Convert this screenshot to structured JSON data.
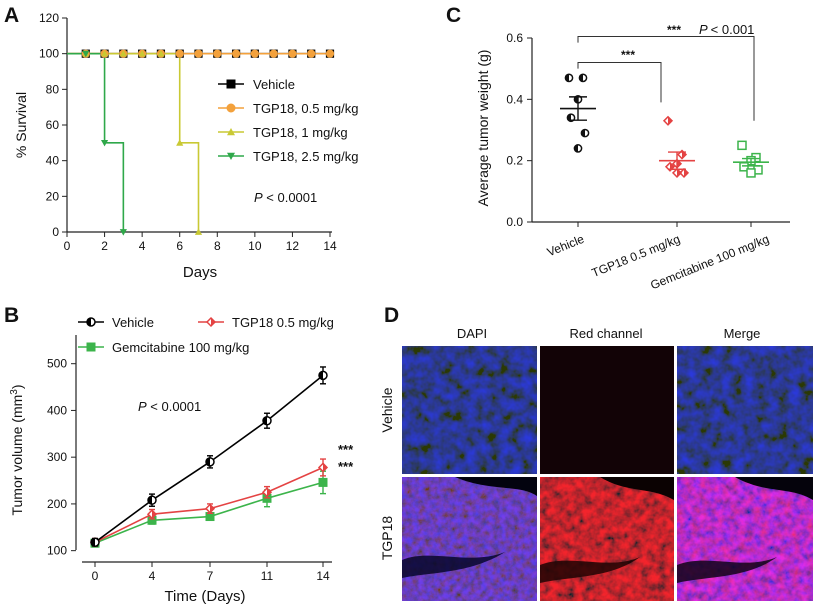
{
  "panel_labels": {
    "a": "A",
    "b": "B",
    "c": "C",
    "d": "D"
  },
  "micrograph": {
    "columns": [
      "DAPI",
      "Red channel",
      "Merge"
    ],
    "rows": [
      "Vehicle",
      "TGP18"
    ]
  },
  "chart_data": [
    {
      "id": "A",
      "type": "line",
      "xlabel": "Days",
      "ylabel": "% Survival",
      "xlim": [
        0,
        14
      ],
      "ylim": [
        0,
        120
      ],
      "xticks": [
        0,
        2,
        4,
        6,
        8,
        10,
        12,
        14
      ],
      "yticks": [
        0,
        20,
        40,
        60,
        80,
        100,
        120
      ],
      "annotation": {
        "p": "P",
        "text": " < 0.0001"
      },
      "series": [
        {
          "name": "Vehicle",
          "color": "#000000",
          "marker": "square",
          "points": [
            [
              0,
              100
            ],
            [
              14,
              100
            ]
          ],
          "marks": [
            1,
            2,
            3,
            4,
            5,
            6,
            7,
            8,
            9,
            10,
            11,
            12,
            13,
            14
          ]
        },
        {
          "name": "TGP18, 0.5 mg/kg",
          "color": "#f3a13c",
          "marker": "circle",
          "points": [
            [
              0,
              100
            ],
            [
              14,
              100
            ]
          ],
          "marks": [
            1,
            2,
            3,
            4,
            5,
            6,
            7,
            8,
            9,
            10,
            11,
            12,
            13,
            14
          ]
        },
        {
          "name": "TGP18, 1 mg/kg",
          "color": "#c9c934",
          "marker": "triangle-up",
          "points": [
            [
              0,
              100
            ],
            [
              6,
              100
            ],
            [
              6,
              50
            ],
            [
              7,
              50
            ],
            [
              7,
              0
            ]
          ],
          "mark_points": [
            [
              1,
              100
            ],
            [
              2,
              100
            ],
            [
              3,
              100
            ],
            [
              4,
              100
            ],
            [
              5,
              100
            ],
            [
              6,
              50
            ],
            [
              7,
              0
            ]
          ]
        },
        {
          "name": "TGP18, 2.5 mg/kg",
          "color": "#2fa84a",
          "marker": "triangle-down",
          "points": [
            [
              0,
              100
            ],
            [
              2,
              100
            ],
            [
              2,
              50
            ],
            [
              3,
              50
            ],
            [
              3,
              0
            ]
          ],
          "mark_points": [
            [
              1,
              100
            ],
            [
              2,
              50
            ],
            [
              3,
              0
            ]
          ]
        }
      ]
    },
    {
      "id": "B",
      "type": "line",
      "xlabel": "Time (Days)",
      "ylabel": "Tumor volume (mm",
      "ylabel_sup": "3",
      "ylabel_close": ")",
      "categories": [
        0,
        4,
        7,
        11,
        14
      ],
      "ylim": [
        80,
        540
      ],
      "yticks": [
        100,
        200,
        300,
        400,
        500
      ],
      "annotation": {
        "p": "P",
        "text": " < 0.0001"
      },
      "significance": [
        "***",
        "***"
      ],
      "series": [
        {
          "name": "Vehicle",
          "color": "#000000",
          "marker": "half-circle",
          "values": [
            118,
            208,
            290,
            378,
            475
          ],
          "errors": [
            8,
            13,
            13,
            16,
            18
          ]
        },
        {
          "name": "TGP18 0.5 mg/kg",
          "color": "#e44343",
          "marker": "diamond",
          "values": [
            118,
            178,
            190,
            225,
            278
          ],
          "errors": [
            8,
            10,
            10,
            12,
            18
          ]
        },
        {
          "name": "Gemcitabine 100 mg/kg",
          "color": "#3cb44b",
          "marker": "square",
          "values": [
            116,
            165,
            173,
            212,
            246
          ],
          "errors": [
            8,
            8,
            8,
            18,
            24
          ]
        }
      ]
    },
    {
      "id": "C",
      "type": "scatter",
      "ylabel": "Average tumor weight (g)",
      "ylim": [
        0,
        0.6
      ],
      "yticks": [
        "0.0",
        "0.2",
        "0.4",
        "0.6"
      ],
      "categories": [
        "Vehicle",
        "TGP18 0.5 mg/kg",
        "Gemcitabine 100 mg/kg"
      ],
      "comparisons": [
        {
          "label": "***",
          "from": 0,
          "to": 1
        },
        {
          "label": "***",
          "p": "P",
          "p_text": "< 0.001",
          "from": 0,
          "to": 2
        }
      ],
      "groups": [
        {
          "name": "Vehicle",
          "color": "#111111",
          "mean": 0.37,
          "sem": 0.038,
          "points": [
            0.47,
            0.47,
            0.4,
            0.34,
            0.29,
            0.24
          ]
        },
        {
          "name": "TGP18 0.5 mg/kg",
          "color": "#e44343",
          "mean": 0.2,
          "sem": 0.028,
          "points": [
            0.33,
            0.22,
            0.19,
            0.18,
            0.16,
            0.16
          ]
        },
        {
          "name": "Gemcitabine 100 mg/kg",
          "color": "#3cb44b",
          "mean": 0.195,
          "sem": 0.012,
          "points": [
            0.25,
            0.21,
            0.2,
            0.18,
            0.17,
            0.16
          ]
        }
      ]
    }
  ]
}
